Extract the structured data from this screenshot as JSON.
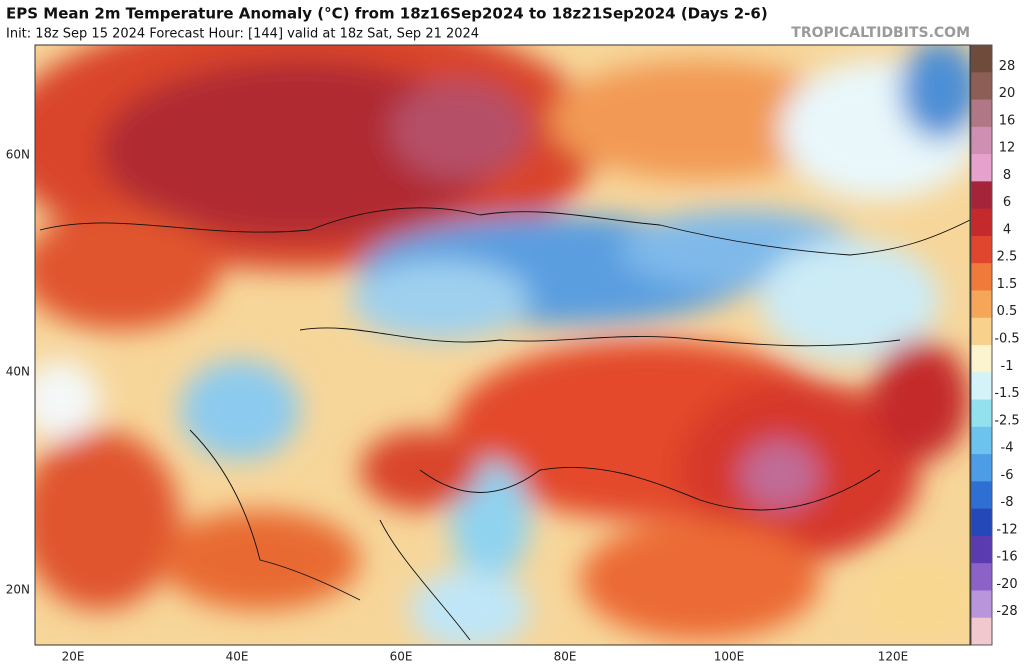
{
  "header": {
    "title": "EPS Mean 2m Temperature Anomaly (°C) from 18z16Sep2024 to 18z21Sep2024 (Days 2-6)",
    "subtitle": "Init: 18z Sep 15 2024   Forecast Hour: [144]   valid at 18z Sat, Sep 21 2024",
    "watermark": "TROPICALTIDBITS.COM"
  },
  "map": {
    "lat_labels": [
      "60N",
      "40N",
      "20N"
    ],
    "lon_labels": [
      "20E",
      "40E",
      "60E",
      "80E",
      "100E",
      "120E"
    ]
  },
  "colorbar": {
    "labels": [
      "28",
      "20",
      "16",
      "12",
      "8",
      "6",
      "4",
      "2.5",
      "1.5",
      "0.5",
      "-0.5",
      "-1",
      "-1.5",
      "-2.5",
      "-4",
      "-6",
      "-8",
      "-12",
      "-16",
      "-20",
      "-28"
    ],
    "colors": [
      "#6e4b3a",
      "#8c5e55",
      "#b07886",
      "#cf8fb2",
      "#e6a2cc",
      "#a5243a",
      "#c42a2c",
      "#e0452d",
      "#f07a3a",
      "#f5a658",
      "#f8d28c",
      "#fcf3cf",
      "#d4f3f8",
      "#93e0ef",
      "#6cc4ee",
      "#4d9de6",
      "#2f6fd4",
      "#2448b8",
      "#5a3cb0",
      "#8d62c8",
      "#b995dc",
      "#f2c8cf"
    ]
  }
}
